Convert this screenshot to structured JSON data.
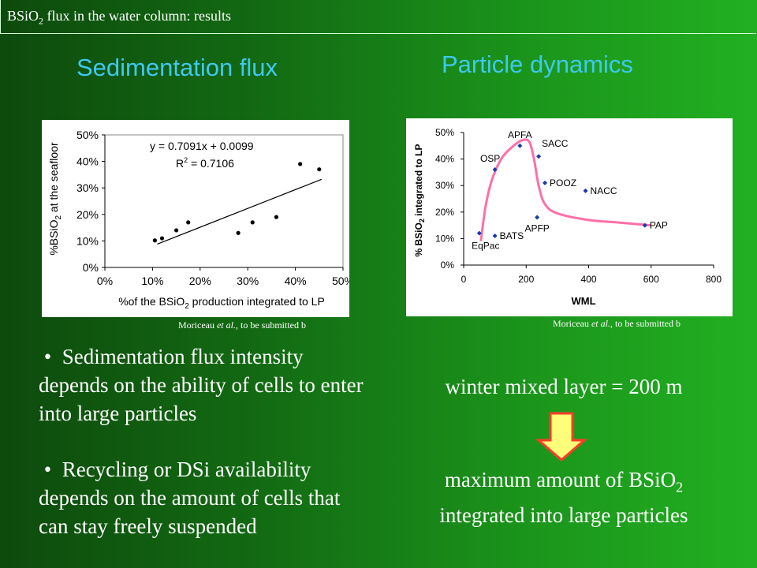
{
  "header": {
    "title": "BSiO",
    "title_sub": "2",
    "title_rest": " flux in the water column: results"
  },
  "left_section": {
    "title": "Sedimentation flux"
  },
  "right_section": {
    "title": "Particle dynamics"
  },
  "colors": {
    "title": "#3fc8f0",
    "curve": "#ff6fa8",
    "arrow_fill": "#ffff7a",
    "arrow_stroke": "#ff3c28"
  },
  "chart_data": [
    {
      "type": "scatter",
      "xlabel": "%of the BSiO",
      "xlabel_sub": "2",
      "xlabel_rest": " production integrated to LP",
      "ylabel": "%BSiO",
      "ylabel_sub": "2",
      "ylabel_rest": " at the seafloor",
      "xlim": [
        0,
        0.5
      ],
      "ylim": [
        0,
        0.5
      ],
      "xticks": [
        "0%",
        "10%",
        "20%",
        "30%",
        "40%",
        "50%"
      ],
      "yticks": [
        "0%",
        "10%",
        "20%",
        "30%",
        "40%",
        "50%"
      ],
      "points": [
        [
          0.105,
          0.102
        ],
        [
          0.12,
          0.11
        ],
        [
          0.15,
          0.14
        ],
        [
          0.175,
          0.17
        ],
        [
          0.28,
          0.13
        ],
        [
          0.31,
          0.17
        ],
        [
          0.36,
          0.19
        ],
        [
          0.41,
          0.39
        ],
        [
          0.45,
          0.37
        ]
      ],
      "fit": {
        "slope": 0.7091,
        "intercept": 0.0099,
        "x_range": [
          0.11,
          0.455
        ]
      },
      "equation": "y = 0.7091x + 0.0099",
      "r2_label": "R",
      "r2_exp": "2",
      "r2_value": " = 0.7106",
      "credit_author": "Moriceau ",
      "credit_etal": "et al.",
      "credit_rest": ", to be submitted b"
    },
    {
      "type": "scatter",
      "xlabel": "WML",
      "ylabel": "% BSiO",
      "ylabel_sub": "2",
      "ylabel_rest": " integrated to LP",
      "xlim": [
        0,
        800
      ],
      "ylim": [
        0,
        0.5
      ],
      "xticks": [
        "0",
        "200",
        "400",
        "600",
        "800"
      ],
      "yticks": [
        "0%",
        "10%",
        "20%",
        "30%",
        "40%",
        "50%"
      ],
      "points": [
        {
          "x": 50,
          "y": 0.12,
          "label": "EqPac",
          "label_pos": "below"
        },
        {
          "x": 100,
          "y": 0.11,
          "label": "BATS",
          "label_pos": "right"
        },
        {
          "x": 100,
          "y": 0.36,
          "label": "OSP",
          "label_pos": "above"
        },
        {
          "x": 180,
          "y": 0.45,
          "label": "APFA",
          "label_pos": "above"
        },
        {
          "x": 240,
          "y": 0.41,
          "label": "SACC",
          "label_pos": "above"
        },
        {
          "x": 235,
          "y": 0.18,
          "label": "APFP",
          "label_pos": "below"
        },
        {
          "x": 260,
          "y": 0.31,
          "label": "POOZ",
          "label_pos": "right"
        },
        {
          "x": 390,
          "y": 0.28,
          "label": "NACC",
          "label_pos": "right"
        },
        {
          "x": 580,
          "y": 0.15,
          "label": "PAP",
          "label_pos": "right"
        }
      ],
      "curve": [
        [
          55,
          0.09
        ],
        [
          70,
          0.22
        ],
        [
          90,
          0.32
        ],
        [
          120,
          0.4
        ],
        [
          150,
          0.44
        ],
        [
          185,
          0.47
        ],
        [
          210,
          0.465
        ],
        [
          225,
          0.4
        ],
        [
          240,
          0.3
        ],
        [
          260,
          0.23
        ],
        [
          300,
          0.195
        ],
        [
          400,
          0.17
        ],
        [
          500,
          0.16
        ],
        [
          600,
          0.15
        ]
      ],
      "credit_author": "Moriceau ",
      "credit_etal": "et al.",
      "credit_rest": ", to be submitted b"
    }
  ],
  "bullets": [
    "Sedimentation flux intensity depends on the ability of cells to enter into large particles",
    "Recycling or DSi availability depends on the amount of cells that can stay freely suspended"
  ],
  "right_text": {
    "winter": "winter mixed layer = 200 m",
    "max_line1": "maximum amount of BSiO",
    "max_sub": "2",
    "max_line2": "integrated into large particles"
  }
}
